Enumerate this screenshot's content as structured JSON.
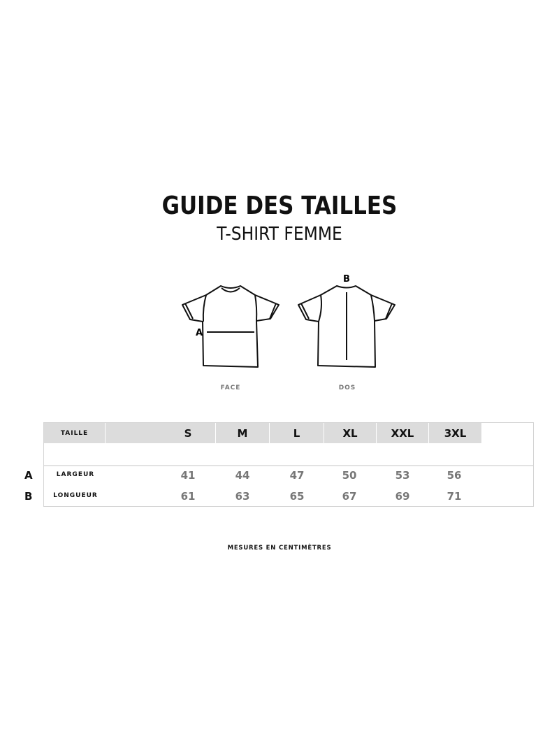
{
  "title": "GUIDE DES TAILLES",
  "subtitle": "T-SHIRT FEMME",
  "diagrams": {
    "front_label": "FACE",
    "back_label": "DOS",
    "front_marker": "A",
    "back_marker": "B"
  },
  "table": {
    "header_label": "TAILLE",
    "sizes": [
      "S",
      "M",
      "L",
      "XL",
      "XXL",
      "3XL"
    ],
    "rows": [
      {
        "marker": "A",
        "label": "LARGEUR",
        "values": [
          "41",
          "44",
          "47",
          "50",
          "53",
          "56"
        ]
      },
      {
        "marker": "B",
        "label": "LONGUEUR",
        "values": [
          "61",
          "63",
          "65",
          "67",
          "69",
          "71"
        ]
      }
    ]
  },
  "footer": "MESURES EN CENTIMÈTRES",
  "colors": {
    "header_bg": "#dcdcdc",
    "value_text": "#777777",
    "text": "#111111"
  }
}
